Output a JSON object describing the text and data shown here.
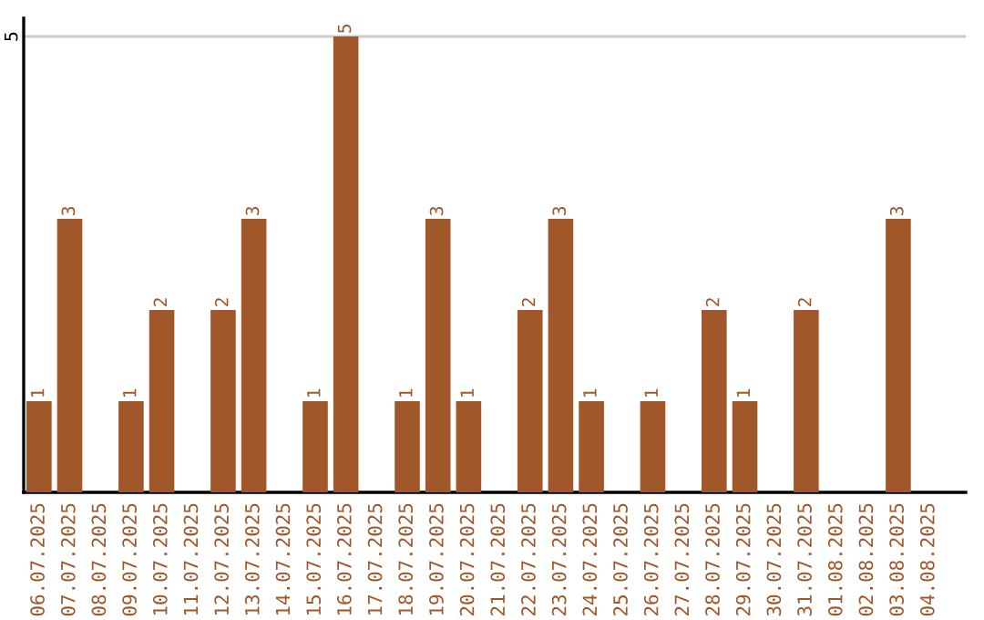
{
  "chart_data": {
    "type": "bar",
    "categories": [
      "06.07.2025",
      "07.07.2025",
      "08.07.2025",
      "09.07.2025",
      "10.07.2025",
      "11.07.2025",
      "12.07.2025",
      "13.07.2025",
      "14.07.2025",
      "15.07.2025",
      "16.07.2025",
      "17.07.2025",
      "18.07.2025",
      "19.07.2025",
      "20.07.2025",
      "21.07.2025",
      "22.07.2025",
      "23.07.2025",
      "24.07.2025",
      "25.07.2025",
      "26.07.2025",
      "27.07.2025",
      "28.07.2025",
      "29.07.2025",
      "30.07.2025",
      "31.07.2025",
      "01.08.2025",
      "02.08.2025",
      "03.08.2025",
      "04.08.2025"
    ],
    "values": [
      1,
      3,
      null,
      1,
      2,
      null,
      2,
      3,
      null,
      1,
      5,
      null,
      1,
      3,
      1,
      null,
      2,
      3,
      1,
      null,
      1,
      null,
      2,
      1,
      null,
      2,
      null,
      null,
      3,
      null
    ],
    "color": "#a0572a",
    "ylim": [
      0,
      5.2
    ],
    "yticks": [
      5
    ],
    "grid": "y",
    "data_labels": true
  }
}
